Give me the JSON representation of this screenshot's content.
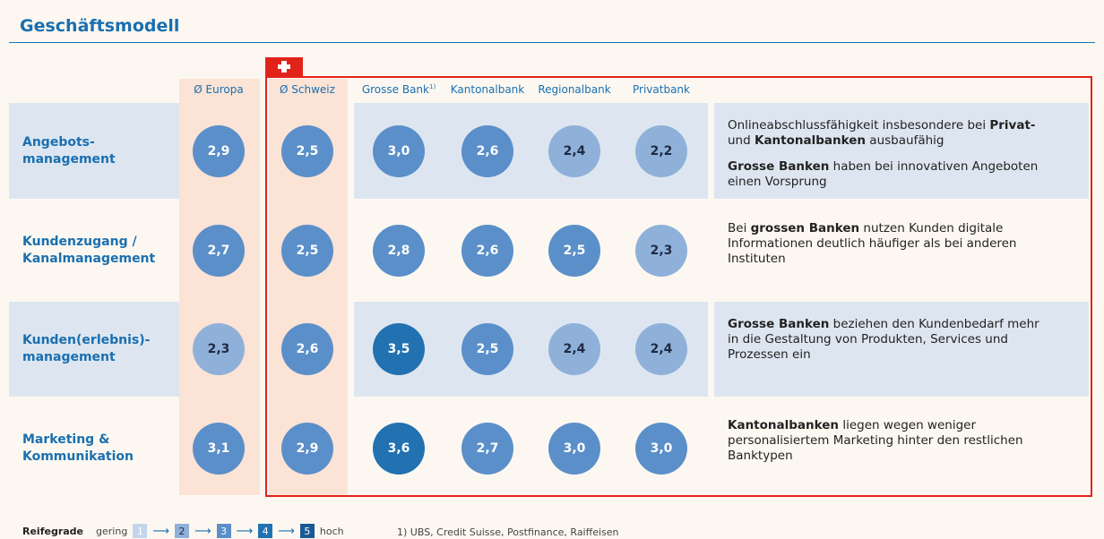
{
  "header": {
    "title": "Geschäftsmodell"
  },
  "columns": [
    {
      "label": "Ø Europa"
    },
    {
      "label": "Ø Schweiz"
    },
    {
      "label": "Grosse Bank",
      "sup": "1)"
    },
    {
      "label": "Kantonalbank"
    },
    {
      "label": "Regionalbank"
    },
    {
      "label": "Privatbank"
    }
  ],
  "rows": [
    {
      "label": [
        "Angebots-",
        "management"
      ],
      "values": [
        "2,9",
        "2,5",
        "3,0",
        "2,6",
        "2,4",
        "2,2"
      ],
      "note": [
        [
          {
            "text": "Onlineabschlussfähigkeit insbesondere bei "
          },
          {
            "text": "Privat-",
            "bold": true
          },
          {
            "text": " und "
          },
          {
            "text": "Kantonalbanken",
            "bold": true
          },
          {
            "text": " ausbaufähig"
          }
        ],
        [
          {
            "text": "Grosse Banken",
            "bold": true
          },
          {
            "text": " haben bei innovativen Angeboten einen Vorsprung"
          }
        ]
      ]
    },
    {
      "label": [
        "Kundenzugang /",
        "Kanalmanagement"
      ],
      "values": [
        "2,7",
        "2,5",
        "2,8",
        "2,6",
        "2,5",
        "2,3"
      ],
      "note": [
        [
          {
            "text": "Bei "
          },
          {
            "text": "grossen Banken",
            "bold": true
          },
          {
            "text": " nutzen Kunden digitale Informationen deutlich häufiger als bei anderen Instituten"
          }
        ]
      ]
    },
    {
      "label": [
        "Kunden(erlebnis)-",
        "management"
      ],
      "values": [
        "2,3",
        "2,6",
        "3,5",
        "2,5",
        "2,4",
        "2,4"
      ],
      "note": [
        [
          {
            "text": "Grosse Banken",
            "bold": true
          },
          {
            "text": " beziehen den Kundenbedarf mehr in die Gestaltung von Produkten, Services und Prozessen ein"
          }
        ]
      ]
    },
    {
      "label": [
        "Marketing &",
        "Kommunikation"
      ],
      "values": [
        "3,1",
        "2,9",
        "3,6",
        "2,7",
        "3,0",
        "3,0"
      ],
      "note": [
        [
          {
            "text": "Kantonalbanken",
            "bold": true
          },
          {
            "text": " liegen wegen weniger personalisiertem Marketing hinter den restlichen Banktypen"
          }
        ]
      ]
    }
  ],
  "legend": {
    "title": "Reifegrade",
    "low": "gering",
    "high": "hoch",
    "levels": [
      {
        "label": "1",
        "color": "#c3d5ea",
        "text": "#ffffff"
      },
      {
        "label": "2",
        "color": "#8fb1d9",
        "text": "#1f2a44"
      },
      {
        "label": "3",
        "color": "#5b8fc9",
        "text": "#ffffff"
      },
      {
        "label": "4",
        "color": "#2271b1",
        "text": "#ffffff"
      },
      {
        "label": "5",
        "color": "#1a5a94",
        "text": "#ffffff"
      }
    ]
  },
  "footnote": "1) UBS, Credit Suisse, Postfinance, Raiffeisen"
}
